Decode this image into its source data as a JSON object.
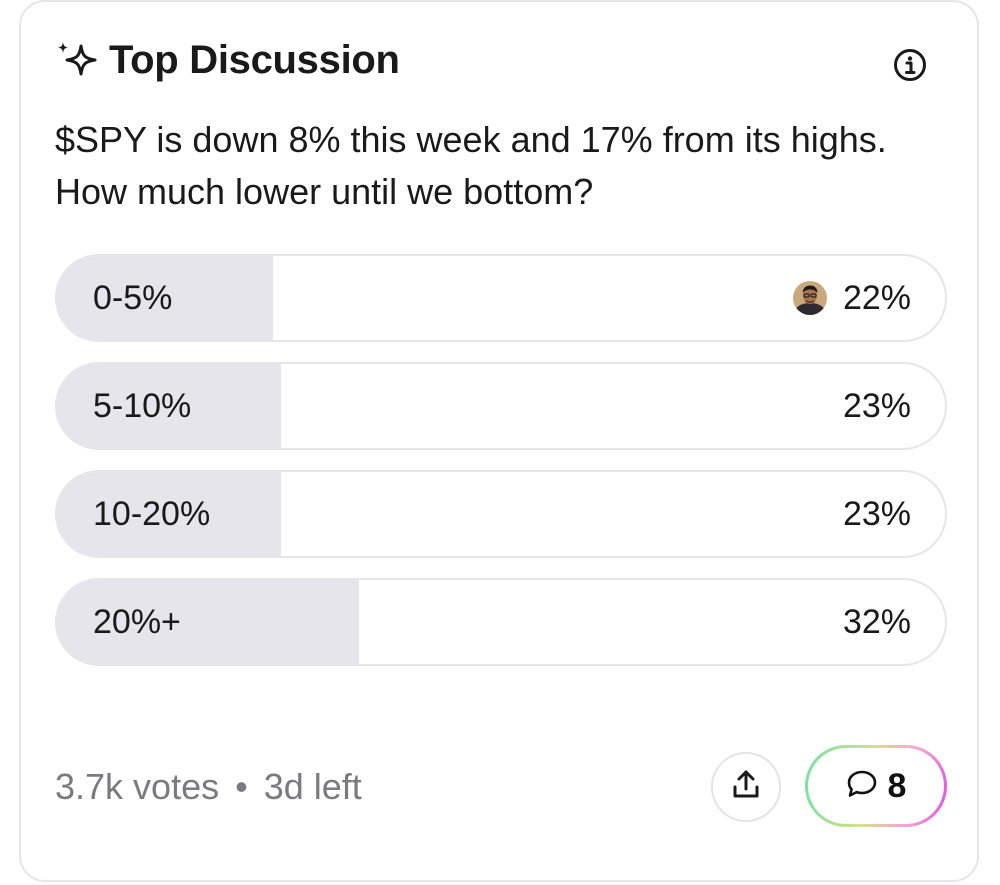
{
  "card": {
    "title": "Top Discussion",
    "question": "$SPY is down 8% this week and 17% from its highs. How much lower until we bottom?"
  },
  "poll": {
    "options": [
      {
        "label": "0-5%",
        "percent": "22%",
        "fill_fraction": 0.243,
        "has_avatar": true
      },
      {
        "label": "5-10%",
        "percent": "23%",
        "fill_fraction": 0.252
      },
      {
        "label": "10-20%",
        "percent": "23%",
        "fill_fraction": 0.252
      },
      {
        "label": "20%+",
        "percent": "32%",
        "fill_fraction": 0.34
      }
    ]
  },
  "footer": {
    "votes": "3.7k votes",
    "separator": "•",
    "time_left": "3d left",
    "comment_count": "8"
  },
  "colors": {
    "fill": "#e6e5ec",
    "border": "#e6e6ea",
    "muted_text": "#7a7a80"
  },
  "icons": {
    "header": "sparkle-icon",
    "info": "info-icon",
    "share": "share-upload-icon",
    "comment": "comment-bubble-icon"
  }
}
